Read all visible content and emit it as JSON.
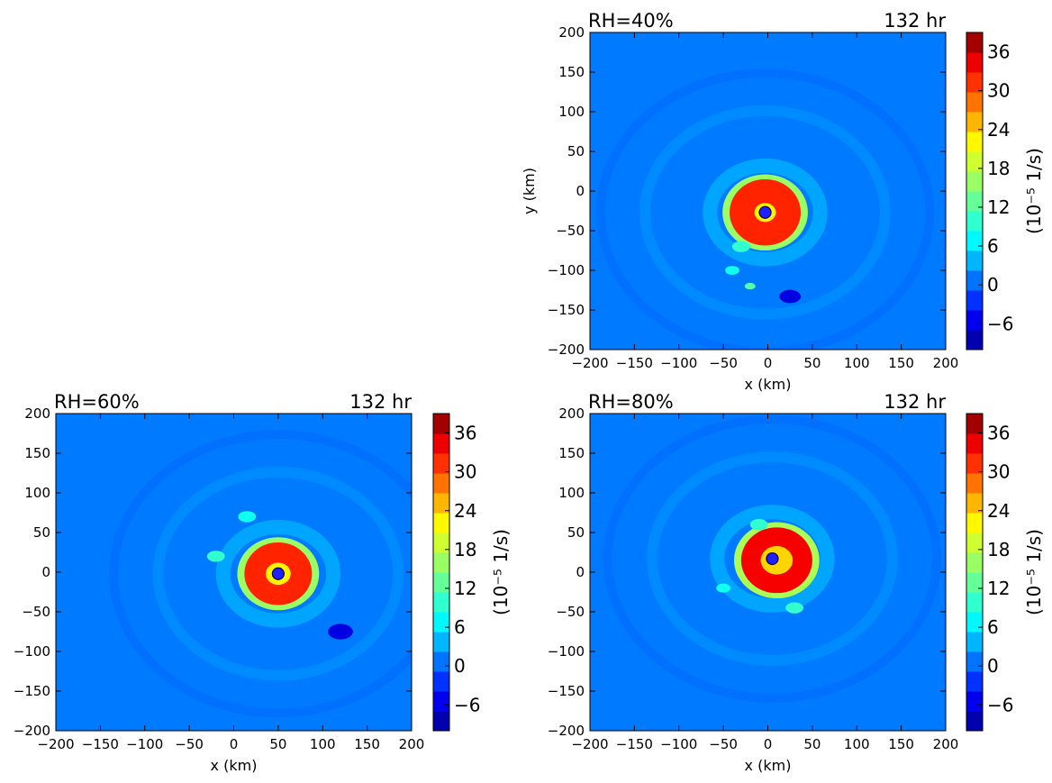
{
  "chart_data": [
    {
      "type": "heatmap",
      "panel": "top-right",
      "left_title": "RH=40%",
      "right_title": "132 hr",
      "xlabel": "x (km)",
      "ylabel": "y (km)",
      "xlim": [
        -200,
        200
      ],
      "ylim": [
        -200,
        200
      ],
      "xticks": [
        -200,
        -150,
        -100,
        -50,
        0,
        50,
        100,
        150,
        200
      ],
      "yticks": [
        -200,
        -150,
        -100,
        -50,
        0,
        50,
        100,
        150,
        200
      ],
      "center_marker": {
        "x": -3,
        "y": -27
      },
      "colorbar_label": "(10⁻⁵ 1/s)",
      "colorbar_ticks": [
        -6,
        0,
        6,
        12,
        18,
        24,
        30,
        36
      ],
      "colorbar_range": [
        -10,
        39
      ],
      "features": [
        {
          "kind": "ring",
          "x": -3,
          "y": -27,
          "inner": 12,
          "outer": 40,
          "value": 32
        },
        {
          "kind": "blob",
          "x": -30,
          "y": -70,
          "r": 10,
          "value": 10
        },
        {
          "kind": "blob",
          "x": -40,
          "y": -100,
          "r": 8,
          "value": 8
        },
        {
          "kind": "blob",
          "x": 25,
          "y": -133,
          "r": 12,
          "value": -6
        },
        {
          "kind": "blob",
          "x": -20,
          "y": -120,
          "r": 6,
          "value": 12
        }
      ]
    },
    {
      "type": "heatmap",
      "panel": "bottom-left",
      "left_title": "RH=60%",
      "right_title": "132 hr",
      "xlabel": "x (km)",
      "ylabel": "",
      "xlim": [
        -200,
        200
      ],
      "ylim": [
        -200,
        200
      ],
      "xticks": [
        -200,
        -150,
        -100,
        -50,
        0,
        50,
        100,
        150,
        200
      ],
      "yticks": [
        -200,
        -150,
        -100,
        -50,
        0,
        50,
        100,
        150,
        200
      ],
      "center_marker": {
        "x": 50,
        "y": -2
      },
      "colorbar_label": "(10⁻⁵ 1/s)",
      "colorbar_ticks": [
        -6,
        0,
        6,
        12,
        18,
        24,
        30,
        36
      ],
      "colorbar_range": [
        -10,
        39
      ],
      "features": [
        {
          "kind": "ring",
          "x": 50,
          "y": -2,
          "inner": 14,
          "outer": 38,
          "value": 32
        },
        {
          "kind": "blob",
          "x": 15,
          "y": 70,
          "r": 10,
          "value": 8
        },
        {
          "kind": "blob",
          "x": 120,
          "y": -75,
          "r": 14,
          "value": -6
        },
        {
          "kind": "blob",
          "x": -20,
          "y": 20,
          "r": 10,
          "value": 10
        }
      ]
    },
    {
      "type": "heatmap",
      "panel": "bottom-right",
      "left_title": "RH=80%",
      "right_title": "132 hr",
      "xlabel": "x (km)",
      "ylabel": "",
      "xlim": [
        -200,
        200
      ],
      "ylim": [
        -200,
        200
      ],
      "xticks": [
        -200,
        -150,
        -100,
        -50,
        0,
        50,
        100,
        150,
        200
      ],
      "yticks": [
        -200,
        -150,
        -100,
        -50,
        0,
        50,
        100,
        150,
        200
      ],
      "center_marker": {
        "x": 5,
        "y": 17
      },
      "colorbar_label": "(10⁻⁵ 1/s)",
      "colorbar_ticks": [
        -6,
        0,
        6,
        12,
        18,
        24,
        30,
        36
      ],
      "colorbar_range": [
        -10,
        39
      ],
      "features": [
        {
          "kind": "ring",
          "x": 10,
          "y": 15,
          "inner": 18,
          "outer": 40,
          "value": 34
        },
        {
          "kind": "blob",
          "x": -10,
          "y": 60,
          "r": 10,
          "value": 10
        },
        {
          "kind": "blob",
          "x": 30,
          "y": -45,
          "r": 10,
          "value": 10
        },
        {
          "kind": "blob",
          "x": -50,
          "y": -20,
          "r": 8,
          "value": 8
        }
      ]
    }
  ]
}
